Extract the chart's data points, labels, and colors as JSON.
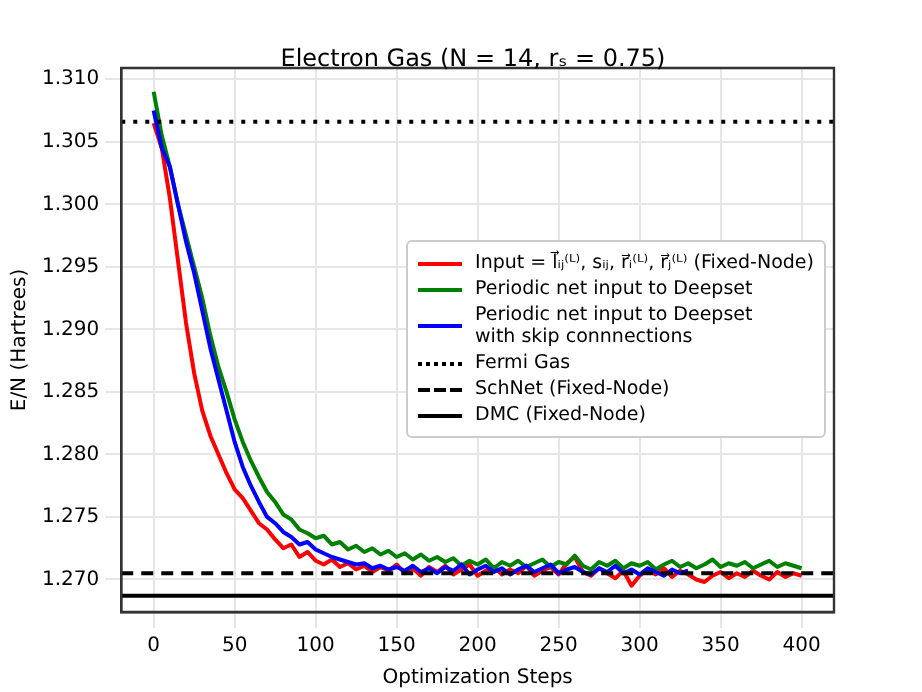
{
  "chart_data": {
    "type": "line",
    "title": "Electron Gas (N = 14, rₛ = 0.75)",
    "xlabel": "Optimization Steps",
    "ylabel": "E/N (Hartrees)",
    "xlim": [
      -20,
      420
    ],
    "xticks": [
      0,
      50,
      100,
      150,
      200,
      250,
      300,
      350,
      400
    ],
    "ylim": [
      1.2674,
      1.3109
    ],
    "yticks": [
      {
        "value": 1.27,
        "label": "1.270"
      },
      {
        "value": 1.275,
        "label": "1.275"
      },
      {
        "value": 1.28,
        "label": "1.280"
      },
      {
        "value": 1.285,
        "label": "1.285"
      },
      {
        "value": 1.29,
        "label": "1.290"
      },
      {
        "value": 1.295,
        "label": "1.295"
      },
      {
        "value": 1.3,
        "label": "1.300"
      },
      {
        "value": 1.305,
        "label": "1.305"
      },
      {
        "value": 1.31,
        "label": "1.310"
      }
    ],
    "grid": true,
    "legend": "right",
    "marker": "none",
    "line_style": "solid",
    "series": [
      {
        "name": "Input = l⃗ᵢⱼ⁽ᴸ⁾, sᵢⱼ, r⃗ᵢ⁽ᴸ⁾, r⃗ⱼ⁽ᴸ⁾ (Fixed-Node)",
        "color": "#ff0000",
        "x": [
          0,
          5,
          10,
          15,
          20,
          25,
          30,
          35,
          40,
          45,
          50,
          55,
          60,
          65,
          70,
          75,
          80,
          85,
          90,
          95,
          100,
          105,
          110,
          115,
          120,
          125,
          130,
          135,
          140,
          145,
          150,
          155,
          160,
          165,
          170,
          175,
          180,
          185,
          190,
          195,
          200,
          205,
          210,
          215,
          220,
          225,
          230,
          235,
          240,
          245,
          250,
          255,
          260,
          265,
          270,
          275,
          280,
          285,
          290,
          295,
          300,
          305,
          310,
          315,
          320,
          325,
          330,
          335,
          340,
          345,
          350,
          355,
          360,
          365,
          370,
          375,
          380,
          385,
          390,
          395,
          400
        ],
        "values": [
          1.3065,
          1.3045,
          1.3005,
          1.2955,
          1.2905,
          1.2865,
          1.2835,
          1.2815,
          1.28,
          1.2785,
          1.2772,
          1.2765,
          1.2755,
          1.2745,
          1.274,
          1.2732,
          1.2725,
          1.2728,
          1.2718,
          1.2722,
          1.2715,
          1.2712,
          1.2716,
          1.271,
          1.2713,
          1.2708,
          1.2711,
          1.2706,
          1.271,
          1.2707,
          1.2712,
          1.2705,
          1.2709,
          1.2703,
          1.271,
          1.2706,
          1.2711,
          1.2704,
          1.2708,
          1.2712,
          1.2703,
          1.2707,
          1.271,
          1.2704,
          1.2708,
          1.2705,
          1.2711,
          1.2703,
          1.2707,
          1.271,
          1.2704,
          1.2713,
          1.2718,
          1.2706,
          1.2703,
          1.2709,
          1.2705,
          1.2701,
          1.2707,
          1.2695,
          1.2703,
          1.2708,
          1.2704,
          1.2709,
          1.2702,
          1.2707,
          1.2704,
          1.27,
          1.2698,
          1.2703,
          1.2706,
          1.2701,
          1.2705,
          1.2702,
          1.2707,
          1.2703,
          1.27,
          1.2706,
          1.2702,
          1.2705,
          1.2703
        ]
      },
      {
        "name": "Periodic net input to Deepset",
        "color": "#008000",
        "x": [
          0,
          5,
          10,
          15,
          20,
          25,
          30,
          35,
          40,
          45,
          50,
          55,
          60,
          65,
          70,
          75,
          80,
          85,
          90,
          95,
          100,
          105,
          110,
          115,
          120,
          125,
          130,
          135,
          140,
          145,
          150,
          155,
          160,
          165,
          170,
          175,
          180,
          185,
          190,
          195,
          200,
          205,
          210,
          215,
          220,
          225,
          230,
          235,
          240,
          245,
          250,
          255,
          260,
          265,
          270,
          275,
          280,
          285,
          290,
          295,
          300,
          305,
          310,
          315,
          320,
          325,
          330,
          335,
          340,
          345,
          350,
          355,
          360,
          365,
          370,
          375,
          380,
          385,
          390,
          395,
          400
        ],
        "values": [
          1.309,
          1.3055,
          1.303,
          1.3,
          1.2975,
          1.295,
          1.2925,
          1.2895,
          1.287,
          1.285,
          1.2828,
          1.281,
          1.2795,
          1.2782,
          1.277,
          1.2762,
          1.2752,
          1.2748,
          1.274,
          1.2737,
          1.2733,
          1.2735,
          1.2728,
          1.273,
          1.2724,
          1.2727,
          1.2722,
          1.2725,
          1.272,
          1.2723,
          1.2718,
          1.2721,
          1.2716,
          1.272,
          1.2715,
          1.2718,
          1.2714,
          1.2717,
          1.2711,
          1.2715,
          1.2712,
          1.2716,
          1.2709,
          1.2714,
          1.2711,
          1.2715,
          1.271,
          1.2713,
          1.2716,
          1.271,
          1.2714,
          1.2712,
          1.2719,
          1.2711,
          1.2708,
          1.2714,
          1.2711,
          1.2715,
          1.2709,
          1.2713,
          1.2711,
          1.2714,
          1.2708,
          1.2712,
          1.2715,
          1.271,
          1.2713,
          1.2709,
          1.2712,
          1.2716,
          1.271,
          1.2713,
          1.2711,
          1.2714,
          1.2709,
          1.2712,
          1.2715,
          1.271,
          1.2713,
          1.2711,
          1.2709
        ]
      },
      {
        "name": "Periodic net input to Deepset\nwith skip connnections",
        "color": "#0000ff",
        "x": [
          0,
          5,
          10,
          15,
          20,
          25,
          30,
          35,
          40,
          45,
          50,
          55,
          60,
          65,
          70,
          75,
          80,
          85,
          90,
          95,
          100,
          105,
          110,
          115,
          120,
          125,
          130,
          135,
          140,
          145,
          150,
          155,
          160,
          165,
          170,
          175,
          180,
          185,
          190,
          195,
          200,
          205,
          210,
          215,
          220,
          225,
          230,
          235,
          240,
          245,
          250,
          255,
          260,
          265,
          270,
          275,
          280,
          285,
          290,
          295,
          300,
          305,
          310,
          315,
          320,
          325,
          330
        ],
        "values": [
          1.3075,
          1.3045,
          1.303,
          1.3,
          1.297,
          1.2945,
          1.2915,
          1.2885,
          1.286,
          1.2835,
          1.281,
          1.279,
          1.2775,
          1.2762,
          1.275,
          1.2745,
          1.2738,
          1.2734,
          1.2728,
          1.273,
          1.2724,
          1.2721,
          1.2718,
          1.2716,
          1.2714,
          1.2712,
          1.2713,
          1.2709,
          1.2711,
          1.2708,
          1.271,
          1.2707,
          1.2711,
          1.2706,
          1.2709,
          1.2705,
          1.271,
          1.2707,
          1.2712,
          1.2704,
          1.2708,
          1.2711,
          1.2706,
          1.2709,
          1.2704,
          1.2708,
          1.2711,
          1.2706,
          1.2709,
          1.2712,
          1.2705,
          1.2708,
          1.271,
          1.2706,
          1.2704,
          1.2709,
          1.2706,
          1.2711,
          1.2705,
          1.2708,
          1.2704,
          1.2709,
          1.2706,
          1.2703,
          1.2708,
          1.2705,
          1.2707
        ]
      }
    ],
    "ref_lines": [
      {
        "axis": "y",
        "value": 1.3066,
        "label": "Fermi Gas",
        "color": "#000000",
        "line_style": "dotted"
      },
      {
        "axis": "y",
        "value": 1.2705,
        "label": "SchNet (Fixed-Node)",
        "color": "#000000",
        "line_style": "dashed"
      },
      {
        "axis": "y",
        "value": 1.2687,
        "label": "DMC (Fixed-Node)",
        "color": "#000000",
        "line_style": "solid"
      }
    ]
  }
}
